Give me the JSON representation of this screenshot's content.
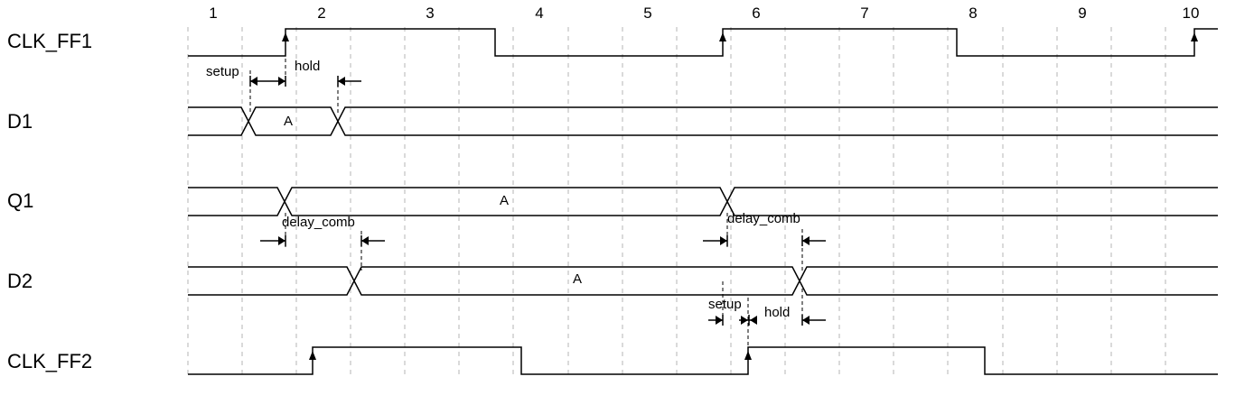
{
  "columns": [
    "1",
    "2",
    "3",
    "4",
    "5",
    "6",
    "7",
    "8",
    "9",
    "10"
  ],
  "signals": {
    "clk_ff1": "CLK_FF1",
    "d1": "D1",
    "q1": "Q1",
    "d2": "D2",
    "clk_ff2": "CLK_FF2"
  },
  "values": {
    "d1": "A",
    "q1": "A",
    "d2": "A"
  },
  "annotations": {
    "setup_1": "setup",
    "hold_1": "hold",
    "delay_comb_1": "delay_comb",
    "delay_comb_2": "delay_comb",
    "setup_2": "setup",
    "hold_2": "hold"
  }
}
